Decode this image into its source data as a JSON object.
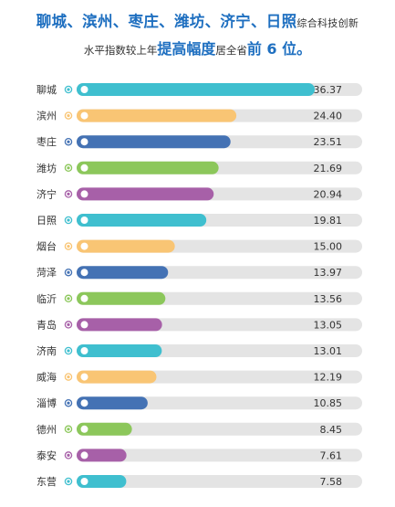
{
  "headline": {
    "line1_bold": "聊城、滨州、枣庄、潍坊、济宁、日照",
    "line1_small": "综合科技创新",
    "line2_small_a": "水平指数较上年",
    "line2_bold_a": "提高幅度",
    "line2_small_b": "居全省",
    "line2_bold_b": "前 6 位。"
  },
  "colors": {
    "track": "#e4e4e4",
    "teal": "#3fbfcf",
    "orange": "#f9c574",
    "blue": "#4472b4",
    "green": "#8cc75b",
    "purple": "#a760a8",
    "headline": "#1e6fc0"
  },
  "chart_data": {
    "type": "bar",
    "orientation": "horizontal",
    "categories": [
      "聊城",
      "滨州",
      "枣庄",
      "潍坊",
      "济宁",
      "日照",
      "烟台",
      "菏泽",
      "临沂",
      "青岛",
      "济南",
      "威海",
      "淄博",
      "德州",
      "泰安",
      "东营"
    ],
    "values": [
      36.37,
      24.4,
      23.51,
      21.69,
      20.94,
      19.81,
      15.0,
      13.97,
      13.56,
      13.05,
      13.01,
      12.19,
      10.85,
      8.45,
      7.61,
      7.58
    ],
    "value_labels": [
      "36.37",
      "24.40",
      "23.51",
      "21.69",
      "20.94",
      "19.81",
      "15.00",
      "13.97",
      "13.56",
      "13.05",
      "13.01",
      "12.19",
      "10.85",
      "8.45",
      "7.61",
      "7.58"
    ],
    "bar_colors": [
      "teal",
      "orange",
      "blue",
      "green",
      "purple",
      "teal",
      "orange",
      "blue",
      "green",
      "purple",
      "teal",
      "orange",
      "blue",
      "green",
      "purple",
      "teal"
    ],
    "xlim": [
      0,
      44
    ],
    "grid": false,
    "legend": "none"
  }
}
